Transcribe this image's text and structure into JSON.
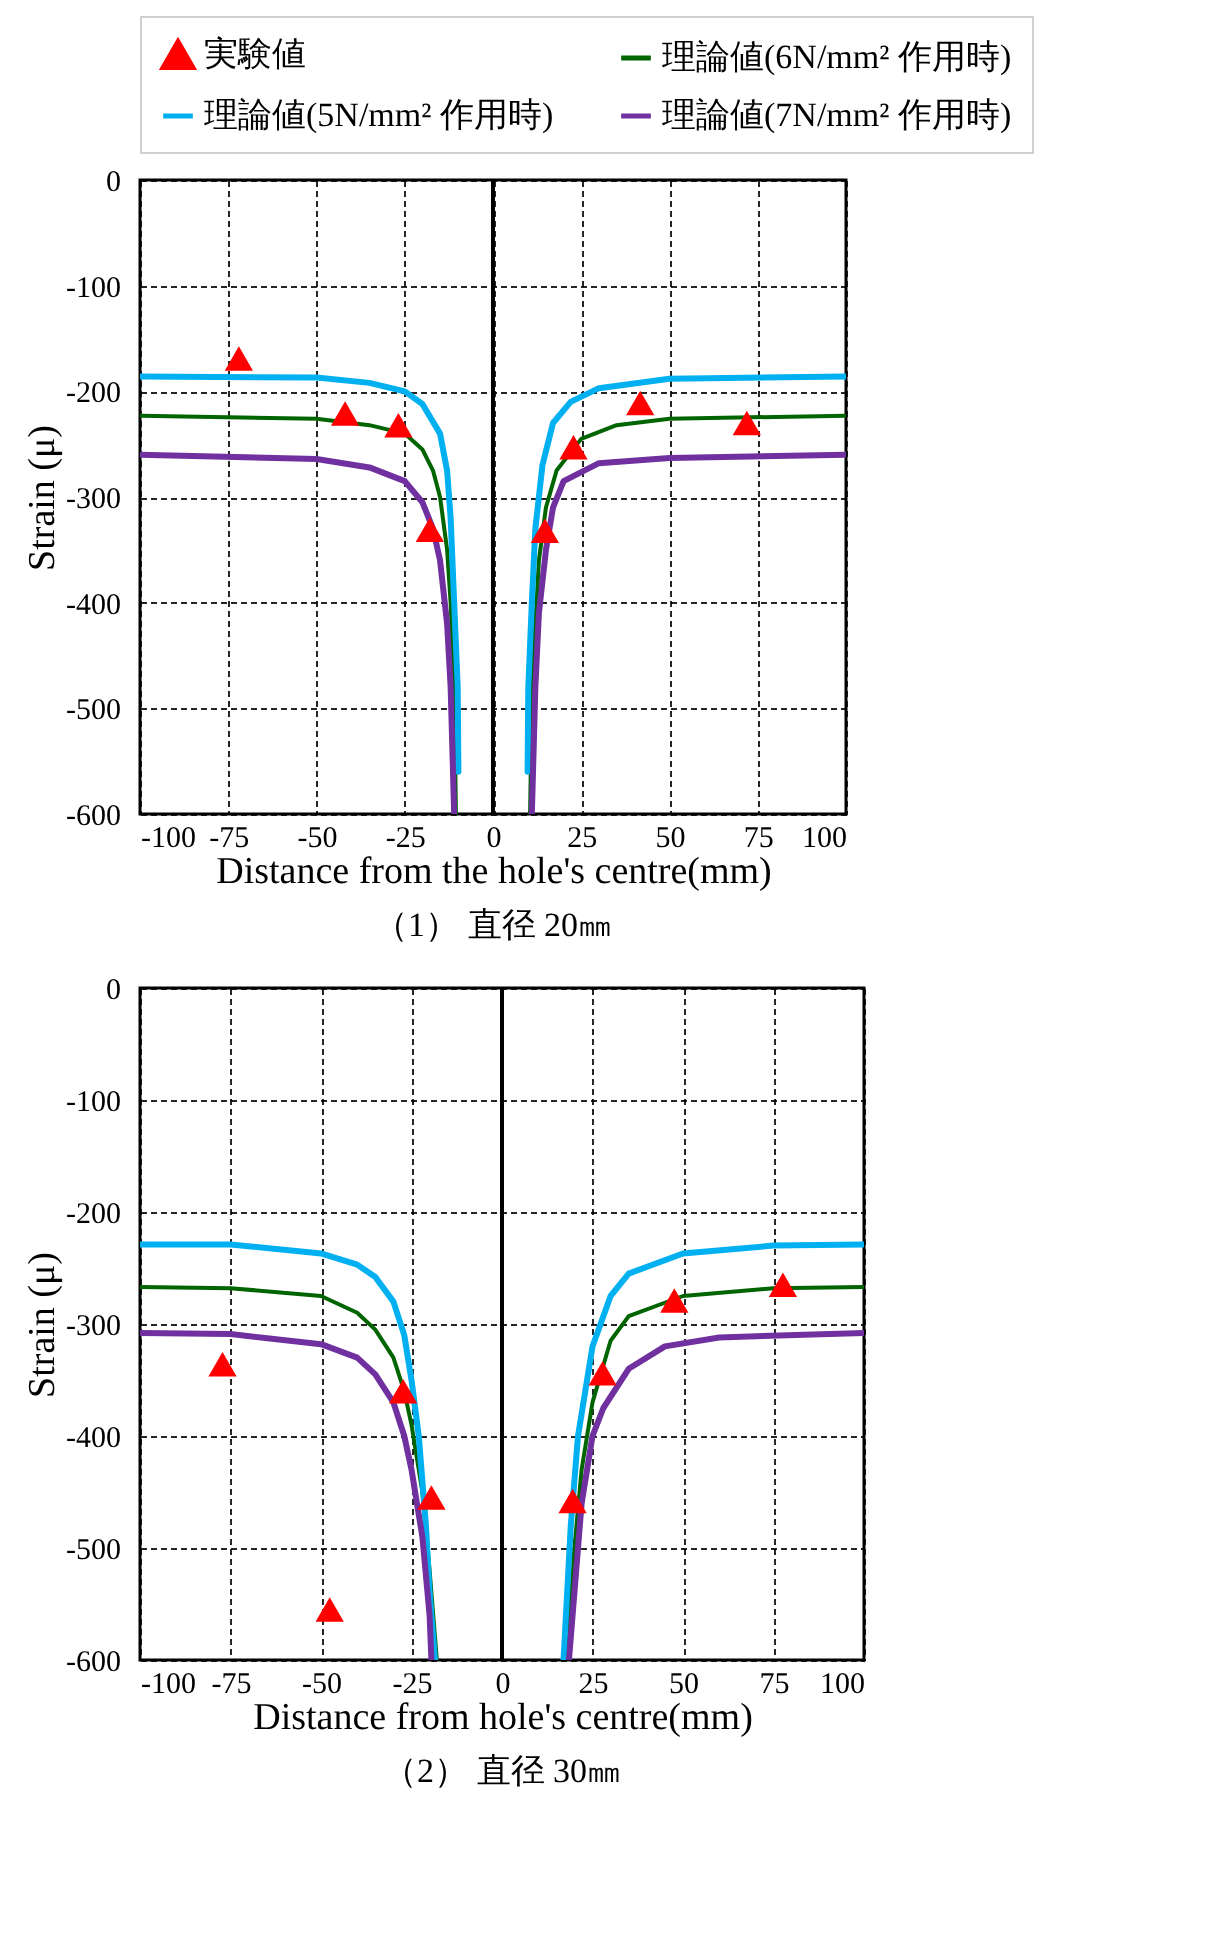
{
  "chart_data": [
    {
      "type": "line",
      "title": "（1） 直径 20㎜",
      "xlabel": "Distance from the hole's centre(mm)",
      "ylabel": "Strain (μ)",
      "xlim": [
        -100,
        100
      ],
      "ylim": [
        -600,
        0
      ],
      "xticks": [
        -100,
        -75,
        -50,
        -25,
        0,
        25,
        50,
        75,
        100
      ],
      "yticks": [
        -600,
        -500,
        -400,
        -300,
        -200,
        -100,
        0
      ],
      "grid": true,
      "legend": "top",
      "line_style": "solid",
      "ref_lines": [
        {
          "axis": "x",
          "value": 0,
          "color": "#000000"
        }
      ],
      "series": [
        {
          "name": "実験値",
          "type": "scatter",
          "marker": "triangle",
          "color": "#ff0000",
          "x": [
            -72,
            -41.9,
            -26.8,
            -17.9,
            14.7,
            22.8,
            41.7,
            71.9
          ],
          "values": [
            -169,
            -221,
            -232,
            -331,
            -332,
            -253,
            -211,
            -230
          ]
        },
        {
          "name": "理論値(6N/mm² 作用時)",
          "color": "#006400",
          "x": [
            -100,
            -50,
            -35,
            -25,
            -20,
            -17,
            -15,
            -13,
            -12,
            -11,
            -10.5,
            0,
            10.5,
            11,
            12,
            13,
            15,
            18,
            25,
            35,
            50,
            100
          ],
          "values": [
            -223,
            -226,
            -232,
            -240,
            -255,
            -275,
            -300,
            -350,
            -400,
            -480,
            -600,
            null,
            -600,
            -500,
            -420,
            -360,
            -310,
            -275,
            -245,
            -232,
            -226,
            -223
          ]
        },
        {
          "name": "理論値(5N/mm² 作用時)",
          "color": "#00b0f0",
          "x": [
            -100,
            -50,
            -35,
            -25,
            -20,
            -15,
            -13,
            -12,
            -11,
            -10,
            -9.8,
            0,
            9.8,
            10,
            11,
            12,
            14,
            17,
            22,
            30,
            50,
            100
          ],
          "values": [
            -186,
            -187,
            -192,
            -200,
            -212,
            -240,
            -275,
            -320,
            -400,
            -480,
            -560,
            null,
            -560,
            -480,
            -400,
            -330,
            -270,
            -230,
            -210,
            -197,
            -188,
            -186
          ]
        },
        {
          "name": "理論値(7N/mm² 作用時)",
          "color": "#7030a0",
          "x": [
            -100,
            -50,
            -35,
            -25,
            -20,
            -17,
            -15,
            -13,
            -12,
            -11,
            0,
            11,
            12,
            13,
            15,
            17,
            20,
            30,
            50,
            100
          ],
          "values": [
            -260,
            -264,
            -272,
            -285,
            -305,
            -330,
            -360,
            -420,
            -480,
            -600,
            null,
            -600,
            -480,
            -410,
            -350,
            -310,
            -285,
            -268,
            -263,
            -260
          ]
        }
      ]
    },
    {
      "type": "line",
      "title": "（2） 直径 30㎜",
      "xlabel": "Distance from hole's centre(mm)",
      "ylabel": "Strain (μ)",
      "xlim": [
        -100,
        100
      ],
      "ylim": [
        -600,
        0
      ],
      "xticks": [
        -100,
        -75,
        -50,
        -25,
        0,
        25,
        50,
        75,
        100
      ],
      "yticks": [
        -600,
        -500,
        -400,
        -300,
        -200,
        -100,
        0
      ],
      "grid": true,
      "line_style": "solid",
      "ref_lines": [
        {
          "axis": "x",
          "value": 0,
          "color": "#000000"
        }
      ],
      "series": [
        {
          "type": "scatter",
          "marker": "triangle",
          "color": "#ff0000",
          "x": [
            -77.2,
            -47.6,
            -27.3,
            -19.5,
            19.5,
            27.8,
            47.6,
            77.6
          ],
          "values": [
            -336,
            -555,
            -360,
            -455,
            -458,
            -344,
            -279,
            -265
          ]
        },
        {
          "color": "#006400",
          "x": [
            -100,
            -75,
            -50,
            -40,
            -35,
            -30,
            -27,
            -25,
            -22,
            -20,
            -18,
            0,
            18,
            20,
            22,
            25,
            30,
            35,
            50,
            75,
            100
          ],
          "values": [
            -267,
            -268,
            -275,
            -290,
            -305,
            -330,
            -360,
            -390,
            -450,
            -520,
            -600,
            null,
            -600,
            -500,
            -430,
            -370,
            -315,
            -293,
            -275,
            -268,
            -267
          ]
        },
        {
          "color": "#00b0f0",
          "x": [
            -100,
            -75,
            -50,
            -40,
            -35,
            -30,
            -27,
            -25,
            -23,
            -21,
            -20,
            -18.5,
            0,
            17,
            19,
            21,
            25,
            30,
            35,
            50,
            75,
            100
          ],
          "values": [
            -229,
            -229,
            -237,
            -247,
            -258,
            -280,
            -310,
            -350,
            -400,
            -480,
            -540,
            -600,
            null,
            -600,
            -480,
            -400,
            -320,
            -275,
            -255,
            -237,
            -230,
            -229
          ]
        },
        {
          "color": "#7030a0",
          "x": [
            -100,
            -75,
            -50,
            -40,
            -35,
            -30,
            -27,
            -25,
            -22,
            -20,
            -19.5,
            0,
            18.5,
            20,
            22,
            25,
            28,
            35,
            45,
            60,
            100
          ],
          "values": [
            -308,
            -309,
            -318,
            -330,
            -345,
            -370,
            -400,
            -430,
            -490,
            -560,
            -600,
            null,
            -600,
            -540,
            -460,
            -400,
            -375,
            -340,
            -320,
            -312,
            -308
          ]
        }
      ]
    }
  ]
}
